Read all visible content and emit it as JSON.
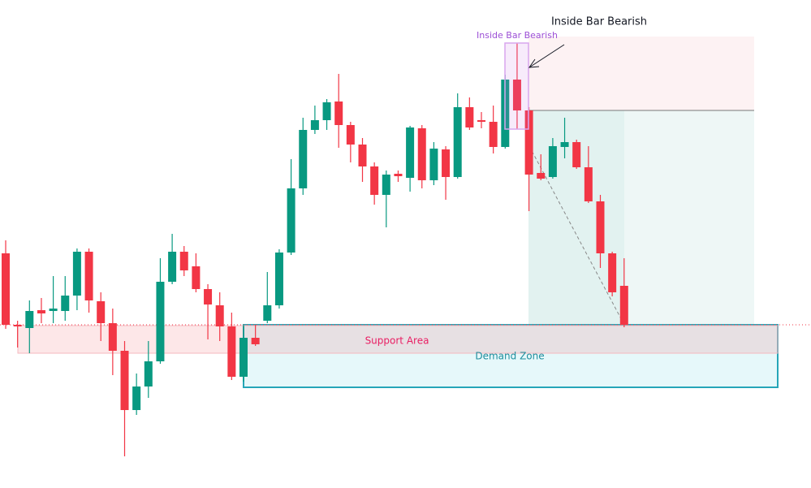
{
  "chart_data": {
    "type": "candlestick",
    "annotations": [
      "Inside Bar Bearish",
      "Inside Bar Bearish",
      "Support Area",
      "Demand Zone"
    ],
    "up_color": "#089981",
    "down_color": "#f23645",
    "ylim": [
      0,
      600
    ],
    "open": [
      288,
      200,
      196,
      218,
      217,
      217,
      236,
      290,
      229,
      202,
      168,
      95,
      124,
      155,
      253,
      290,
      272,
      244,
      224,
      198,
      136,
      184,
      205,
      224,
      289,
      368,
      440,
      452,
      475,
      446,
      422,
      395,
      360,
      386,
      381,
      442,
      378,
      416,
      382,
      468,
      452,
      450,
      419,
      502,
      464,
      387,
      382,
      419,
      425,
      394,
      352,
      288,
      248
    ],
    "high": [
      304,
      205,
      230,
      233,
      260,
      260,
      294,
      294,
      240,
      220,
      180,
      140,
      180,
      282,
      312,
      297,
      288,
      250,
      240,
      215,
      200,
      200,
      265,
      293,
      404,
      455,
      470,
      478,
      509,
      450,
      430,
      400,
      390,
      390,
      445,
      446,
      425,
      420,
      485,
      480,
      462,
      470,
      508,
      547,
      468,
      410,
      430,
      455,
      428,
      420,
      360,
      290,
      282
    ],
    "low": [
      195,
      172,
      165,
      202,
      202,
      205,
      218,
      215,
      180,
      138,
      38,
      89,
      110,
      152,
      250,
      260,
      240,
      182,
      180,
      132,
      130,
      174,
      202,
      220,
      286,
      360,
      435,
      440,
      418,
      400,
      376,
      348,
      320,
      376,
      364,
      368,
      372,
      354,
      380,
      440,
      442,
      411,
      417,
      441,
      340,
      378,
      380,
      405,
      392,
      350,
      270,
      235,
      197
    ],
    "close": [
      200,
      198,
      217,
      214,
      220,
      236,
      290,
      230,
      202,
      168,
      95,
      124,
      155,
      253,
      290,
      267,
      244,
      225,
      198,
      136,
      184,
      176,
      224,
      289,
      368,
      440,
      452,
      474,
      446,
      422,
      395,
      360,
      385,
      383,
      443,
      378,
      417,
      382,
      468,
      443,
      450,
      419,
      502,
      464,
      385,
      380,
      420,
      425,
      394,
      352,
      288,
      240,
      200
    ]
  }
}
